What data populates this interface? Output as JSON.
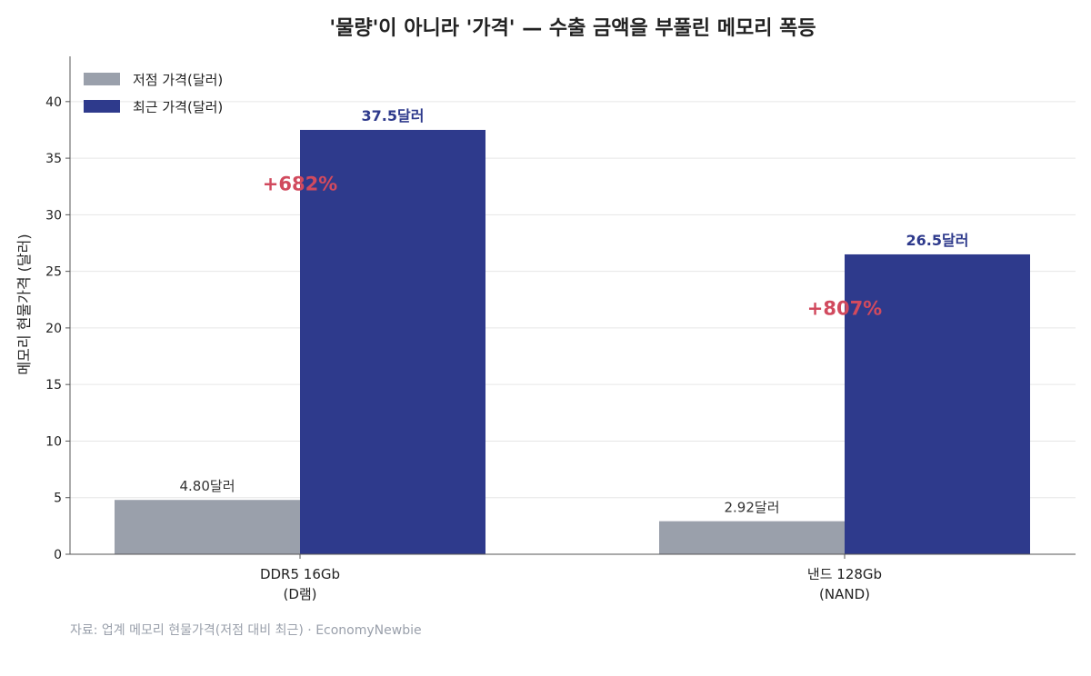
{
  "chart_data": {
    "type": "bar",
    "title": "'물량'이 아니라 '가격' — 수출 금액을 부풀린 메모리 폭등",
    "ylabel": "메모리 현물가격 (달러)",
    "ylim": [
      0,
      44
    ],
    "yticks": [
      0,
      5,
      10,
      15,
      20,
      25,
      30,
      35,
      40
    ],
    "categories": [
      [
        "DDR5 16Gb",
        "(D램)"
      ],
      [
        "낸드 128Gb",
        "(NAND)"
      ]
    ],
    "series": [
      {
        "name": "저점 가격(달러)",
        "color": "#9aa0ab",
        "values": [
          4.8,
          2.92
        ],
        "labels": [
          "4.80달러",
          "2.92달러"
        ]
      },
      {
        "name": "최근 가격(달러)",
        "color": "#2e3a8c",
        "values": [
          37.5,
          26.5
        ],
        "labels": [
          "37.5달러",
          "26.5달러"
        ]
      }
    ],
    "annotations": [
      {
        "category": 0,
        "text": "+682%",
        "y": 32.7
      },
      {
        "category": 1,
        "text": "+807%",
        "y": 21.7
      }
    ],
    "annotation_color": "#d14a5e",
    "grid": "horizontal",
    "legend": "top-left"
  },
  "source": "자료: 업계 메모리 현물가격(저점 대비 최근) · EconomyNewbie"
}
